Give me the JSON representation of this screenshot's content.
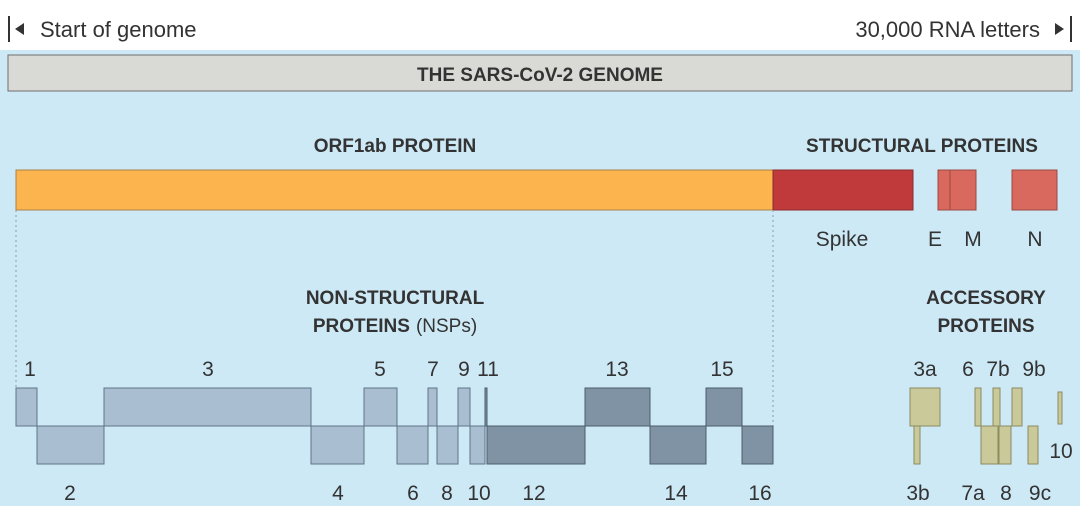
{
  "header": {
    "start_label": "Start of genome",
    "end_label": "30,000 RNA letters",
    "genome_title": "THE SARS-CoV-2 GENOME"
  },
  "sections": {
    "orf1ab_title": "ORF1ab PROTEIN",
    "structural_title": "STRUCTURAL PROTEINS",
    "nsp_title_line1": "NON-STRUCTURAL",
    "nsp_title_line2_bold": "PROTEINS",
    "nsp_title_line2_normal": "(NSPs)",
    "accessory_title_line1": "ACCESSORY",
    "accessory_title_line2": "PROTEINS"
  },
  "structural_labels": {
    "spike": "Spike",
    "e": "E",
    "m": "M",
    "n": "N"
  },
  "nsp_labels": {
    "n1": "1",
    "n2": "2",
    "n3": "3",
    "n4": "4",
    "n5": "5",
    "n6": "6",
    "n7": "7",
    "n8": "8",
    "n9": "9",
    "n10": "10",
    "n11": "11",
    "n12": "12",
    "n13": "13",
    "n14": "14",
    "n15": "15",
    "n16": "16"
  },
  "accessory_labels": {
    "a3a": "3a",
    "a3b": "3b",
    "a6": "6",
    "a7a": "7a",
    "a7b": "7b",
    "a8": "8",
    "a9b": "9b",
    "a9c": "9c",
    "a10": "10"
  },
  "colors": {
    "background": "#cde9f6",
    "genome_bar": "#d9d9d6",
    "orf1ab": "#fbb44e",
    "spike": "#c0393b",
    "e_m_n": "#d9685e",
    "nsp_light": "#a9bfd1",
    "nsp_dark": "#7f93a5",
    "accessory": "#c9c99a",
    "text": "#333333"
  }
}
